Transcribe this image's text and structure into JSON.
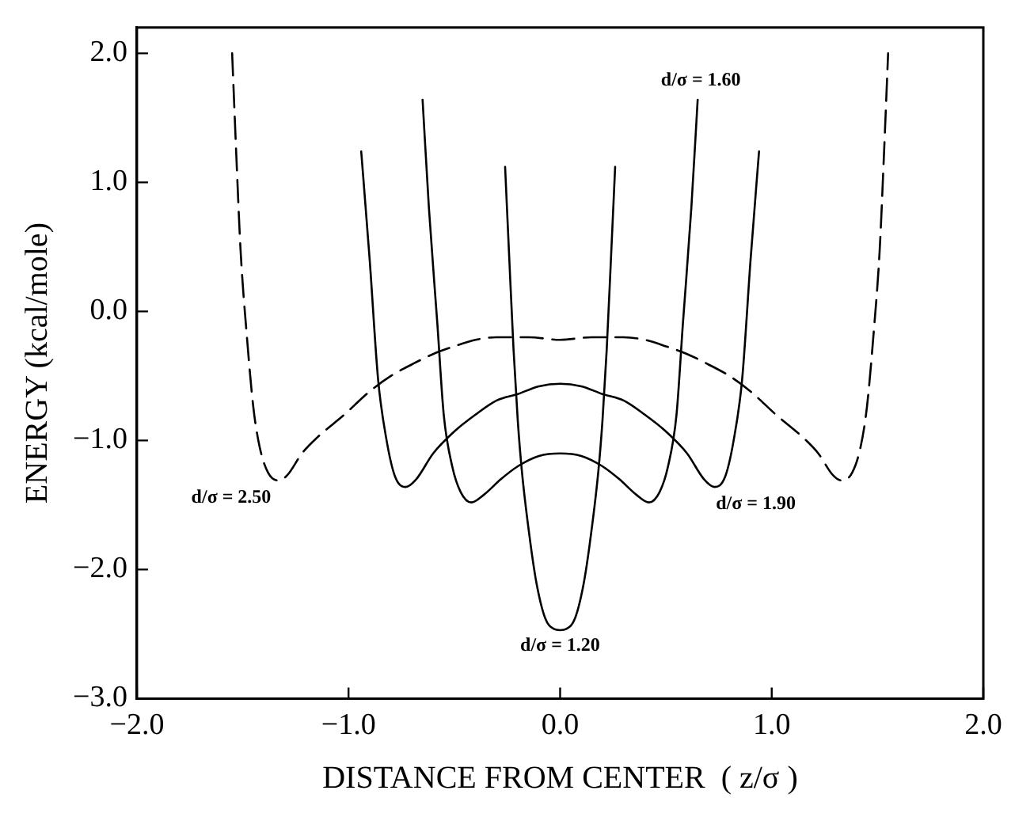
{
  "chart_data": {
    "type": "line",
    "xlabel": "DISTANCE FROM CENTER  ( z/σ )",
    "ylabel": "ENERGY (kcal/mole)",
    "xlim": [
      -2.0,
      2.0
    ],
    "ylim": [
      -3.0,
      2.2
    ],
    "xticks": [
      {
        "value": -2,
        "label": "−2.0"
      },
      {
        "value": -1,
        "label": "−1.0"
      },
      {
        "value": 0,
        "label": "0.0"
      },
      {
        "value": 1,
        "label": "1.0"
      },
      {
        "value": 2,
        "label": "2.0"
      }
    ],
    "yticks": [
      {
        "value": -3,
        "label": "−3.0"
      },
      {
        "value": -2,
        "label": "−2.0"
      },
      {
        "value": -1,
        "label": "−1.0"
      },
      {
        "value": 0,
        "label": "0.0"
      },
      {
        "value": 1,
        "label": "1.0"
      },
      {
        "value": 2,
        "label": "2.0"
      }
    ],
    "grid": false,
    "legend": false,
    "marker": "none",
    "series": [
      {
        "name": "d/σ = 2.50",
        "color": "#000000",
        "line_style": "dashed",
        "x": [
          -1.55,
          -1.53,
          -1.51,
          -1.48,
          -1.45,
          -1.42,
          -1.38,
          -1.33,
          -1.29,
          -1.22,
          -1.15,
          -1.02,
          -0.9,
          -0.8,
          -0.7,
          -0.6,
          -0.5,
          -0.4,
          -0.3,
          -0.15,
          0,
          0.15,
          0.3,
          0.4,
          0.5,
          0.6,
          0.7,
          0.8,
          0.9,
          1.02,
          1.15,
          1.22,
          1.29,
          1.33,
          1.38,
          1.42,
          1.45,
          1.48,
          1.51,
          1.53,
          1.55
        ],
        "values": [
          2.0,
          1.2,
          0.47,
          -0.2,
          -0.74,
          -1.05,
          -1.25,
          -1.31,
          -1.27,
          -1.1,
          -0.98,
          -0.8,
          -0.62,
          -0.5,
          -0.41,
          -0.33,
          -0.27,
          -0.22,
          -0.2,
          -0.2,
          -0.22,
          -0.2,
          -0.2,
          -0.22,
          -0.27,
          -0.33,
          -0.41,
          -0.5,
          -0.62,
          -0.8,
          -0.98,
          -1.1,
          -1.27,
          -1.31,
          -1.25,
          -1.05,
          -0.74,
          -0.2,
          0.47,
          1.2,
          2.0
        ]
      },
      {
        "name": "d/σ = 1.90",
        "color": "#000000",
        "line_style": "solid",
        "x": [
          -0.94,
          -0.9,
          -0.86,
          -0.82,
          -0.78,
          -0.73,
          -0.68,
          -0.6,
          -0.5,
          -0.4,
          -0.3,
          -0.2,
          -0.1,
          0,
          0.1,
          0.2,
          0.3,
          0.4,
          0.5,
          0.6,
          0.68,
          0.73,
          0.78,
          0.82,
          0.86,
          0.9,
          0.94
        ],
        "values": [
          1.24,
          0.4,
          -0.53,
          -1.0,
          -1.28,
          -1.36,
          -1.3,
          -1.1,
          -0.93,
          -0.8,
          -0.69,
          -0.64,
          -0.58,
          -0.56,
          -0.58,
          -0.64,
          -0.69,
          -0.8,
          -0.93,
          -1.1,
          -1.3,
          -1.36,
          -1.28,
          -1.0,
          -0.53,
          0.4,
          1.24
        ]
      },
      {
        "name": "d/σ = 1.60",
        "color": "#000000",
        "line_style": "solid",
        "x": [
          -0.65,
          -0.62,
          -0.58,
          -0.55,
          -0.51,
          -0.47,
          -0.42,
          -0.36,
          -0.28,
          -0.2,
          -0.1,
          0,
          0.1,
          0.2,
          0.28,
          0.36,
          0.42,
          0.47,
          0.51,
          0.55,
          0.58,
          0.62,
          0.65
        ],
        "values": [
          1.64,
          0.8,
          -0.1,
          -0.8,
          -1.2,
          -1.4,
          -1.48,
          -1.42,
          -1.3,
          -1.2,
          -1.12,
          -1.1,
          -1.12,
          -1.2,
          -1.3,
          -1.42,
          -1.48,
          -1.4,
          -1.2,
          -0.8,
          -0.1,
          0.8,
          1.64
        ]
      },
      {
        "name": "d/σ = 1.20",
        "color": "#000000",
        "line_style": "solid",
        "x": [
          -0.26,
          -0.24,
          -0.22,
          -0.2,
          -0.18,
          -0.14,
          -0.11,
          -0.07,
          -0.03,
          0,
          0.03,
          0.07,
          0.11,
          0.14,
          0.18,
          0.2,
          0.22,
          0.24,
          0.26
        ],
        "values": [
          1.12,
          0.4,
          -0.3,
          -0.85,
          -1.25,
          -1.8,
          -2.12,
          -2.38,
          -2.46,
          -2.47,
          -2.46,
          -2.38,
          -2.12,
          -1.8,
          -1.25,
          -0.85,
          -0.3,
          0.4,
          1.12
        ]
      }
    ]
  }
}
